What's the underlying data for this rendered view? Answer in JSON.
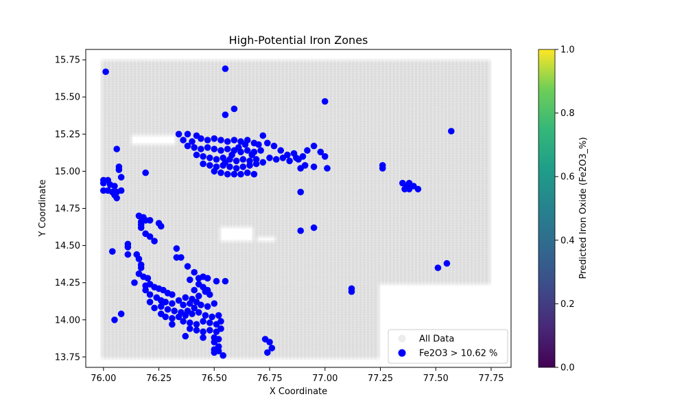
{
  "chart_data": {
    "type": "scatter",
    "title": "High-Potential Iron Zones",
    "xlabel": "X Coordinate",
    "ylabel": "Y Coordinate",
    "xlim": [
      75.92,
      77.84
    ],
    "ylim": [
      13.68,
      15.82
    ],
    "x_ticks": [
      "76.00",
      "76.25",
      "76.50",
      "76.75",
      "77.00",
      "77.25",
      "77.50",
      "77.75"
    ],
    "y_ticks": [
      "13.75",
      "14.00",
      "14.25",
      "14.50",
      "14.75",
      "15.00",
      "15.25",
      "15.50",
      "15.75"
    ],
    "grid": false,
    "legend_position": "lower right",
    "legend": [
      "All Data",
      "Fe2O3 > 10.62 %"
    ],
    "colorbar": {
      "label": "Predicted Iron Oxide (Fe2O3_%)",
      "colormap": "viridis",
      "range": [
        0,
        1
      ],
      "ticks": [
        "0.0",
        "0.2",
        "0.4",
        "0.6",
        "0.8",
        "1.0"
      ]
    },
    "background_grid": {
      "name": "All Data",
      "color": "#c8c8c8",
      "x_start": 76.0,
      "x_end": 77.75,
      "x_step": 0.0167,
      "y_start": 13.75,
      "y_end": 15.75,
      "y_step": 0.0167,
      "region": "x 76.00–77.75 for y 14.25–15.75; x 76.00–77.25 for y 13.75–14.25"
    },
    "series": [
      {
        "name": "Fe2O3 > 10.62 %",
        "color": "#0000ff",
        "points": [
          [
            76.01,
            15.67
          ],
          [
            76.55,
            15.69
          ],
          [
            76.59,
            15.42
          ],
          [
            76.55,
            15.38
          ],
          [
            77.0,
            15.47
          ],
          [
            77.57,
            15.27
          ],
          [
            76.34,
            15.25
          ],
          [
            76.38,
            15.25
          ],
          [
            76.42,
            15.24
          ],
          [
            76.36,
            15.21
          ],
          [
            76.4,
            15.2
          ],
          [
            76.44,
            15.22
          ],
          [
            76.47,
            15.21
          ],
          [
            76.5,
            15.22
          ],
          [
            76.53,
            15.21
          ],
          [
            76.56,
            15.2
          ],
          [
            76.59,
            15.21
          ],
          [
            76.62,
            15.2
          ],
          [
            76.65,
            15.21
          ],
          [
            76.68,
            15.19
          ],
          [
            76.7,
            15.18
          ],
          [
            76.72,
            15.24
          ],
          [
            76.38,
            15.17
          ],
          [
            76.41,
            15.16
          ],
          [
            76.44,
            15.15
          ],
          [
            76.47,
            15.16
          ],
          [
            76.5,
            15.15
          ],
          [
            76.53,
            15.14
          ],
          [
            76.56,
            15.15
          ],
          [
            76.59,
            15.14
          ],
          [
            76.62,
            15.13
          ],
          [
            76.65,
            15.14
          ],
          [
            76.68,
            15.13
          ],
          [
            76.71,
            15.14
          ],
          [
            76.74,
            15.19
          ],
          [
            76.77,
            15.17
          ],
          [
            76.8,
            15.14
          ],
          [
            76.83,
            15.11
          ],
          [
            76.86,
            15.12
          ],
          [
            76.88,
            15.08
          ],
          [
            76.9,
            15.1
          ],
          [
            76.42,
            15.11
          ],
          [
            76.45,
            15.1
          ],
          [
            76.48,
            15.09
          ],
          [
            76.51,
            15.08
          ],
          [
            76.54,
            15.09
          ],
          [
            76.57,
            15.08
          ],
          [
            76.6,
            15.07
          ],
          [
            76.63,
            15.08
          ],
          [
            76.66,
            15.07
          ],
          [
            76.69,
            15.08
          ],
          [
            76.72,
            15.06
          ],
          [
            76.75,
            15.09
          ],
          [
            76.78,
            15.08
          ],
          [
            76.81,
            15.09
          ],
          [
            76.84,
            15.07
          ],
          [
            76.87,
            15.09
          ],
          [
            76.45,
            15.05
          ],
          [
            76.48,
            15.04
          ],
          [
            76.51,
            15.03
          ],
          [
            76.54,
            15.04
          ],
          [
            76.57,
            15.03
          ],
          [
            76.6,
            15.02
          ],
          [
            76.63,
            15.03
          ],
          [
            76.66,
            15.04
          ],
          [
            76.69,
            15.05
          ],
          [
            76.5,
            15.0
          ],
          [
            76.53,
            14.99
          ],
          [
            76.56,
            14.98
          ],
          [
            76.59,
            14.98
          ],
          [
            76.62,
            14.98
          ],
          [
            76.65,
            14.99
          ],
          [
            76.68,
            14.98
          ],
          [
            76.55,
            15.06
          ],
          [
            76.58,
            15.11
          ],
          [
            76.61,
            15.16
          ],
          [
            76.64,
            15.18
          ],
          [
            76.67,
            15.11
          ],
          [
            76.92,
            15.14
          ],
          [
            76.95,
            15.17
          ],
          [
            76.98,
            15.13
          ],
          [
            77.0,
            15.1
          ],
          [
            76.89,
            15.02
          ],
          [
            76.91,
            15.04
          ],
          [
            76.95,
            15.03
          ],
          [
            77.01,
            15.02
          ],
          [
            76.89,
            14.86
          ],
          [
            76.89,
            14.6
          ],
          [
            76.95,
            14.62
          ],
          [
            77.26,
            15.04
          ],
          [
            77.26,
            15.02
          ],
          [
            77.35,
            14.92
          ],
          [
            77.37,
            14.9
          ],
          [
            77.38,
            14.92
          ],
          [
            77.4,
            14.9
          ],
          [
            77.42,
            14.88
          ],
          [
            77.36,
            14.88
          ],
          [
            77.38,
            14.88
          ],
          [
            77.51,
            14.35
          ],
          [
            77.55,
            14.38
          ],
          [
            77.12,
            14.21
          ],
          [
            77.12,
            14.19
          ],
          [
            76.06,
            15.15
          ],
          [
            76.07,
            15.03
          ],
          [
            76.07,
            15.01
          ],
          [
            76.08,
            14.96
          ],
          [
            76.19,
            14.99
          ],
          [
            76.0,
            14.94
          ],
          [
            76.02,
            14.94
          ],
          [
            76.0,
            14.92
          ],
          [
            76.03,
            14.91
          ],
          [
            76.05,
            14.9
          ],
          [
            76.0,
            14.87
          ],
          [
            76.02,
            14.87
          ],
          [
            76.04,
            14.86
          ],
          [
            76.06,
            14.86
          ],
          [
            76.08,
            14.87
          ],
          [
            76.05,
            14.84
          ],
          [
            76.06,
            14.82
          ],
          [
            76.16,
            14.7
          ],
          [
            76.18,
            14.69
          ],
          [
            76.19,
            14.67
          ],
          [
            76.21,
            14.67
          ],
          [
            76.17,
            14.66
          ],
          [
            76.17,
            14.64
          ],
          [
            76.17,
            14.62
          ],
          [
            76.25,
            14.65
          ],
          [
            76.26,
            14.63
          ],
          [
            76.19,
            14.58
          ],
          [
            76.21,
            14.56
          ],
          [
            76.23,
            14.53
          ],
          [
            76.11,
            14.51
          ],
          [
            76.11,
            14.49
          ],
          [
            76.04,
            14.46
          ],
          [
            76.11,
            14.44
          ],
          [
            76.15,
            14.44
          ],
          [
            76.16,
            14.41
          ],
          [
            76.33,
            14.48
          ],
          [
            76.33,
            14.42
          ],
          [
            76.35,
            14.42
          ],
          [
            76.17,
            14.37
          ],
          [
            76.17,
            14.35
          ],
          [
            76.38,
            14.36
          ],
          [
            76.16,
            14.31
          ],
          [
            76.18,
            14.29
          ],
          [
            76.2,
            14.28
          ],
          [
            76.41,
            14.32
          ],
          [
            76.43,
            14.28
          ],
          [
            76.45,
            14.29
          ],
          [
            76.47,
            14.28
          ],
          [
            76.39,
            14.27
          ],
          [
            76.14,
            14.25
          ],
          [
            76.19,
            14.23
          ],
          [
            76.21,
            14.24
          ],
          [
            76.23,
            14.22
          ],
          [
            76.25,
            14.21
          ],
          [
            76.27,
            14.2
          ],
          [
            76.29,
            14.18
          ],
          [
            76.31,
            14.17
          ],
          [
            76.19,
            14.2
          ],
          [
            76.21,
            14.17
          ],
          [
            76.24,
            14.15
          ],
          [
            76.26,
            14.13
          ],
          [
            76.28,
            14.12
          ],
          [
            76.31,
            14.11
          ],
          [
            76.34,
            14.13
          ],
          [
            76.37,
            14.15
          ],
          [
            76.4,
            14.14
          ],
          [
            76.43,
            14.16
          ],
          [
            76.46,
            14.19
          ],
          [
            76.48,
            14.17
          ],
          [
            76.45,
            14.22
          ],
          [
            76.43,
            14.24
          ],
          [
            76.41,
            14.2
          ],
          [
            76.21,
            14.12
          ],
          [
            76.23,
            14.08
          ],
          [
            76.26,
            14.09
          ],
          [
            76.29,
            14.07
          ],
          [
            76.32,
            14.06
          ],
          [
            76.35,
            14.05
          ],
          [
            76.38,
            14.06
          ],
          [
            76.41,
            14.08
          ],
          [
            76.44,
            14.1
          ],
          [
            76.47,
            14.09
          ],
          [
            76.5,
            14.11
          ],
          [
            76.36,
            14.1
          ],
          [
            76.39,
            14.11
          ],
          [
            76.42,
            14.12
          ],
          [
            76.26,
            14.04
          ],
          [
            76.28,
            14.02
          ],
          [
            76.31,
            14.01
          ],
          [
            76.34,
            14.02
          ],
          [
            76.37,
            14.03
          ],
          [
            76.4,
            14.04
          ],
          [
            76.43,
            14.05
          ],
          [
            76.46,
            14.03
          ],
          [
            76.49,
            14.02
          ],
          [
            76.52,
            14.03
          ],
          [
            76.36,
            13.99
          ],
          [
            76.39,
            13.98
          ],
          [
            76.42,
            13.97
          ],
          [
            76.45,
            13.99
          ],
          [
            76.48,
            13.98
          ],
          [
            76.51,
            13.97
          ],
          [
            76.53,
            13.99
          ],
          [
            76.31,
            13.97
          ],
          [
            76.39,
            13.94
          ],
          [
            76.42,
            13.93
          ],
          [
            76.45,
            13.92
          ],
          [
            76.48,
            13.93
          ],
          [
            76.51,
            13.92
          ],
          [
            76.53,
            13.94
          ],
          [
            76.45,
            13.88
          ],
          [
            76.5,
            13.88
          ],
          [
            76.52,
            13.87
          ],
          [
            76.5,
            13.85
          ],
          [
            76.52,
            13.82
          ],
          [
            76.5,
            13.8
          ],
          [
            76.52,
            13.79
          ],
          [
            76.5,
            13.78
          ],
          [
            76.54,
            13.76
          ],
          [
            76.37,
            13.89
          ],
          [
            76.51,
            14.26
          ],
          [
            76.55,
            14.26
          ],
          [
            76.47,
            14.2
          ],
          [
            76.08,
            14.04
          ],
          [
            76.05,
            14.0
          ],
          [
            76.73,
            13.87
          ],
          [
            76.75,
            13.85
          ],
          [
            76.76,
            13.81
          ],
          [
            76.74,
            13.78
          ]
        ]
      }
    ]
  }
}
